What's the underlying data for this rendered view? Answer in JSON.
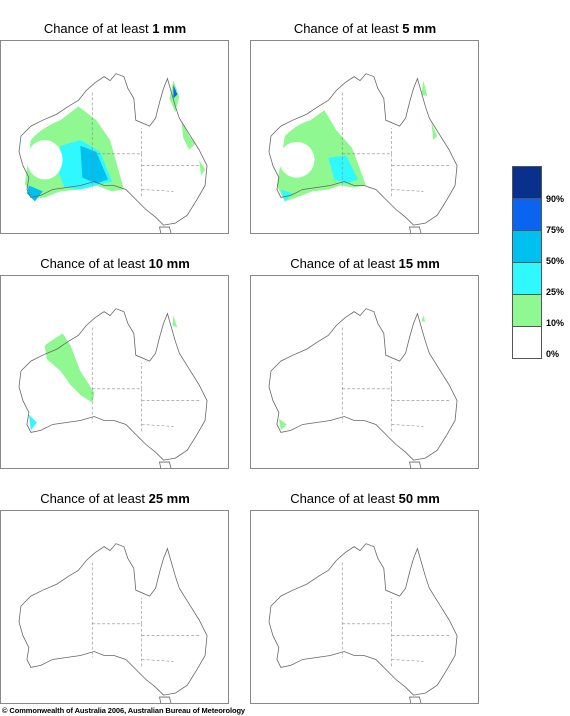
{
  "panels": [
    {
      "prefix": "Chance of at least ",
      "amount": "1 mm"
    },
    {
      "prefix": "Chance of at least ",
      "amount": "5 mm"
    },
    {
      "prefix": "Chance of at least ",
      "amount": "10 mm"
    },
    {
      "prefix": "Chance of at least ",
      "amount": "15 mm"
    },
    {
      "prefix": "Chance of at least ",
      "amount": "25 mm"
    },
    {
      "prefix": "Chance of at least ",
      "amount": "50 mm"
    }
  ],
  "legend": {
    "labels": [
      "90%",
      "75%",
      "50%",
      "25%",
      "10%",
      "0%"
    ],
    "colors": [
      "#08308c",
      "#0a64f0",
      "#00c0f0",
      "#30f8ff",
      "#90f890",
      "#ffffff"
    ]
  },
  "colors": {
    "outline": "#666666",
    "state_border": "#888888"
  },
  "copyright": "© Commonwealth of Australia 2006, Australian Bureau of Meteorology"
}
